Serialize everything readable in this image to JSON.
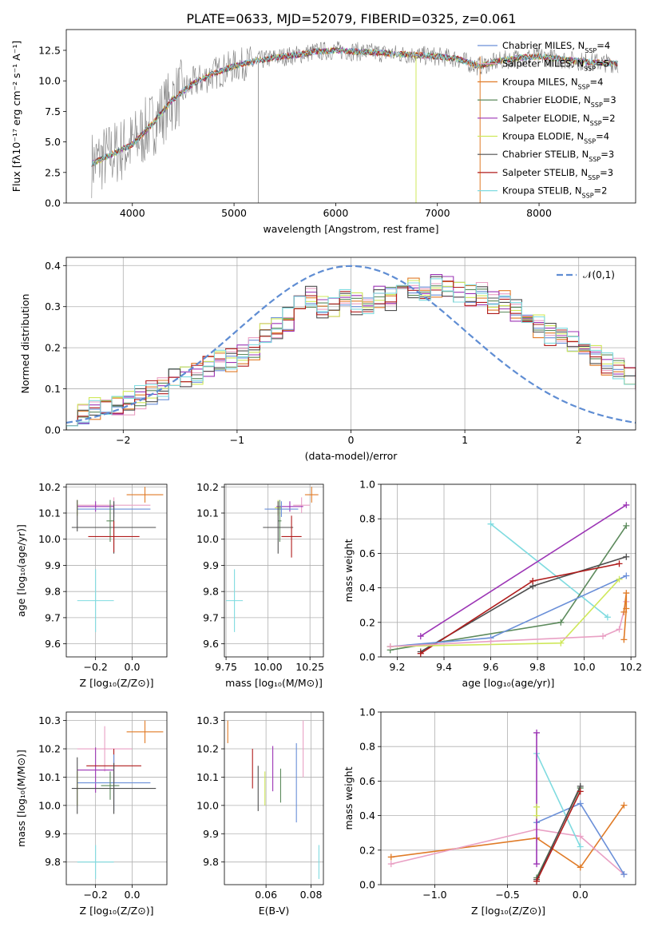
{
  "figure_title": "PLATE=0633, MJD=52079, FIBERID=0325, z=0.061",
  "colors": {
    "chabrier_miles": "#6a8fd8",
    "salpeter_miles": "#e9a0c4",
    "kroupa_miles": "#e07b27",
    "chabrier_elodie": "#5c8a5c",
    "salpeter_elodie": "#9c35b5",
    "kroupa_elodie": "#cfe85b",
    "chabrier_stelib": "#4f4f4f",
    "salpeter_stelib": "#b01c1c",
    "kroupa_stelib": "#7fdbe0",
    "data": "#808080",
    "normal": "#5f8dd3"
  },
  "chart_data": [
    {
      "id": "spectrum",
      "type": "line",
      "title": "PLATE=0633, MJD=52079, FIBERID=0325, z=0.061",
      "xlabel": "wavelength [Angstrom, rest frame]",
      "ylabel": "Flux [fλ10⁻¹⁷ erg cm⁻² s⁻¹ A⁻¹]",
      "xlim": [
        3350,
        8950
      ],
      "ylim": [
        0,
        14.2
      ],
      "xticks": [
        4000,
        5000,
        6000,
        7000,
        8000
      ],
      "xtick_labels": [
        "4000",
        "5000",
        "6000",
        "7000",
        "8000"
      ],
      "yticks": [
        0,
        2.5,
        5,
        7.5,
        10,
        12.5
      ],
      "ytick_labels": [
        "0.0",
        "2.5",
        "5.0",
        "7.5",
        "10.0",
        "12.5"
      ],
      "continuum": {
        "x": [
          3600,
          3800,
          4000,
          4200,
          4400,
          4600,
          4800,
          5000,
          5200,
          5400,
          5600,
          5800,
          6000,
          6200,
          6400,
          6600,
          6800,
          7000,
          7200,
          7400,
          7600,
          7800,
          8000,
          8200,
          8400,
          8600,
          8800
        ],
        "y": [
          3.2,
          4.0,
          4.8,
          6.5,
          8.5,
          9.8,
          10.6,
          11.2,
          11.6,
          11.9,
          12.1,
          12.4,
          12.5,
          12.4,
          12.3,
          12.2,
          12.1,
          12.0,
          11.8,
          11.2,
          11.6,
          11.9,
          12.0,
          11.8,
          11.6,
          11.5,
          11.4
        ]
      },
      "legend": [
        {
          "label": "Chabrier MILES, N",
          "sub": "SSP",
          "suffix": "=4",
          "color": "#6a8fd8"
        },
        {
          "label": "Salpeter MILES, N",
          "sub": "SSP",
          "suffix": "=5",
          "color": "#e9a0c4"
        },
        {
          "label": "Kroupa MILES, N",
          "sub": "SSP",
          "suffix": "=4",
          "color": "#e07b27"
        },
        {
          "label": "Chabrier ELODIE, N",
          "sub": "SSP",
          "suffix": "=3",
          "color": "#5c8a5c"
        },
        {
          "label": "Salpeter ELODIE, N",
          "sub": "SSP",
          "suffix": "=2",
          "color": "#9c35b5"
        },
        {
          "label": "Kroupa ELODIE, N",
          "sub": "SSP",
          "suffix": "=4",
          "color": "#cfe85b"
        },
        {
          "label": "Chabrier STELIB, N",
          "sub": "SSP",
          "suffix": "=3",
          "color": "#4f4f4f"
        },
        {
          "label": "Salpeter STELIB, N",
          "sub": "SSP",
          "suffix": "=3",
          "color": "#b01c1c"
        },
        {
          "label": "Kroupa STELIB, N",
          "sub": "SSP",
          "suffix": "=2",
          "color": "#7fdbe0"
        }
      ]
    },
    {
      "id": "residuals",
      "type": "step-histogram",
      "xlabel": "(data-model)/error",
      "ylabel": "Normed distribution",
      "xlim": [
        -2.5,
        2.5
      ],
      "ylim": [
        0,
        0.42
      ],
      "xticks": [
        -2,
        -1,
        0,
        1,
        2
      ],
      "xtick_labels": [
        "−2",
        "−1",
        "0",
        "1",
        "2"
      ],
      "yticks": [
        0,
        0.1,
        0.2,
        0.3,
        0.4
      ],
      "ytick_labels": [
        "0.0",
        "0.1",
        "0.2",
        "0.3",
        "0.4"
      ],
      "bin_width": 0.1,
      "bins_start": -2.5,
      "base_hist": [
        0.03,
        0.04,
        0.055,
        0.06,
        0.055,
        0.065,
        0.08,
        0.09,
        0.1,
        0.12,
        0.13,
        0.14,
        0.15,
        0.17,
        0.17,
        0.18,
        0.2,
        0.23,
        0.25,
        0.27,
        0.3,
        0.32,
        0.3,
        0.3,
        0.32,
        0.31,
        0.3,
        0.32,
        0.32,
        0.33,
        0.35,
        0.34,
        0.35,
        0.35,
        0.34,
        0.33,
        0.33,
        0.31,
        0.31,
        0.29,
        0.27,
        0.25,
        0.23,
        0.22,
        0.21,
        0.2,
        0.18,
        0.16,
        0.15,
        0.13,
        0.12,
        0.11,
        0.1,
        0.09,
        0.08,
        0.07,
        0.06,
        0.05,
        0.045,
        0.04,
        0.035,
        0.03,
        0.03,
        0.025,
        0.025
      ],
      "normal_label": "𝒩(0,1)"
    },
    {
      "id": "age-vs-Z",
      "type": "errorbar",
      "xlabel": "Z [log₁₀(Z/Z⊙)]",
      "ylabel": "age  [log₁₀(age/yr)]",
      "xlim": [
        -0.36,
        0.19
      ],
      "ylim": [
        9.55,
        10.21
      ],
      "xticks": [
        -0.2,
        0.0
      ],
      "xtick_labels": [
        "−0.2",
        "0.0"
      ],
      "yticks": [
        9.6,
        9.7,
        9.8,
        9.9,
        10.0,
        10.1,
        10.2
      ],
      "ytick_labels": [
        "9.6",
        "9.7",
        "9.8",
        "9.9",
        "10.0",
        "10.1",
        "10.2"
      ],
      "points": [
        {
          "color": "#e07b27",
          "x": 0.07,
          "y": 10.17,
          "xerr": 0.1,
          "yerr": 0.03
        },
        {
          "color": "#e9a0c4",
          "x": -0.1,
          "y": 10.13,
          "xerr": 0.2,
          "yerr": 0.03
        },
        {
          "color": "#9c35b5",
          "x": -0.2,
          "y": 10.125,
          "xerr": 0.1,
          "yerr": 0.02
        },
        {
          "color": "#cfe85b",
          "x": -0.3,
          "y": 10.12,
          "xerr": 0.0,
          "yerr": 0.03
        },
        {
          "color": "#6a8fd8",
          "x": -0.1,
          "y": 10.115,
          "xerr": 0.2,
          "yerr": 0.03
        },
        {
          "color": "#4f4f4f",
          "x": -0.3,
          "y": 10.09,
          "xerr": 0.0,
          "yerr": 0.06
        },
        {
          "color": "#5c8a5c",
          "x": -0.12,
          "y": 10.07,
          "xerr": 0.02,
          "yerr": 0.08
        },
        {
          "color": "#4f4f4f",
          "x": -0.1,
          "y": 10.045,
          "xerr": 0.23,
          "yerr": 0.1
        },
        {
          "color": "#b01c1c",
          "x": -0.1,
          "y": 10.01,
          "xerr": 0.14,
          "yerr": 0.06
        },
        {
          "color": "#7fdbe0",
          "x": -0.2,
          "y": 9.765,
          "xerr": 0.1,
          "yerr": 0.12
        }
      ]
    },
    {
      "id": "age-vs-mass",
      "type": "errorbar",
      "xlabel": "mass [log₁₀(M/M⊙)]",
      "ylabel": "",
      "xlim": [
        9.74,
        10.33
      ],
      "ylim": [
        9.55,
        10.21
      ],
      "xticks": [
        9.75,
        10.0,
        10.25
      ],
      "xtick_labels": [
        "9.75",
        "10.00",
        "10.25"
      ],
      "yticks": [
        9.6,
        9.7,
        9.8,
        9.9,
        10.0,
        10.1,
        10.2
      ],
      "ytick_labels": [
        "9.6",
        "9.7",
        "9.8",
        "9.9",
        "10.0",
        "10.1",
        "10.2"
      ],
      "points": [
        {
          "color": "#e07b27",
          "x": 10.26,
          "y": 10.17,
          "xerr": 0.04,
          "yerr": 0.03
        },
        {
          "color": "#e9a0c4",
          "x": 10.2,
          "y": 10.13,
          "xerr": 0.05,
          "yerr": 0.03
        },
        {
          "color": "#9c35b5",
          "x": 10.13,
          "y": 10.125,
          "xerr": 0.08,
          "yerr": 0.02
        },
        {
          "color": "#cfe85b",
          "x": 10.06,
          "y": 10.12,
          "xerr": 0.02,
          "yerr": 0.03
        },
        {
          "color": "#6a8fd8",
          "x": 10.08,
          "y": 10.115,
          "xerr": 0.1,
          "yerr": 0.03
        },
        {
          "color": "#5c8a5c",
          "x": 10.07,
          "y": 10.07,
          "xerr": 0.01,
          "yerr": 0.08
        },
        {
          "color": "#4f4f4f",
          "x": 10.06,
          "y": 10.045,
          "xerr": 0.09,
          "yerr": 0.1
        },
        {
          "color": "#b01c1c",
          "x": 10.14,
          "y": 10.01,
          "xerr": 0.06,
          "yerr": 0.08
        },
        {
          "color": "#7fdbe0",
          "x": 9.8,
          "y": 9.765,
          "xerr": 0.05,
          "yerr": 0.12
        }
      ]
    },
    {
      "id": "weight-vs-age",
      "type": "line",
      "xlabel": "age  [log₁₀(age/yr)]",
      "ylabel": "mass weight",
      "xlim": [
        9.13,
        10.22
      ],
      "ylim": [
        0,
        1
      ],
      "xticks": [
        9.2,
        9.4,
        9.6,
        9.8,
        10.0,
        10.2
      ],
      "xtick_labels": [
        "9.2",
        "9.4",
        "9.6",
        "9.8",
        "10.0",
        "10.2"
      ],
      "yticks": [
        0,
        0.2,
        0.4,
        0.6,
        0.8,
        1.0
      ],
      "ytick_labels": [
        "0.0",
        "0.2",
        "0.4",
        "0.6",
        "0.8",
        "1.0"
      ],
      "series": [
        {
          "color": "#7fdbe0",
          "x": [
            9.6,
            10.1
          ],
          "y": [
            0.77,
            0.23
          ]
        },
        {
          "color": "#9c35b5",
          "x": [
            9.3,
            10.18
          ],
          "y": [
            0.12,
            0.88
          ]
        },
        {
          "color": "#5c8a5c",
          "x": [
            9.17,
            9.9,
            10.18
          ],
          "y": [
            0.04,
            0.2,
            0.76
          ]
        },
        {
          "color": "#4f4f4f",
          "x": [
            9.3,
            9.78,
            10.18
          ],
          "y": [
            0.03,
            0.41,
            0.58
          ]
        },
        {
          "color": "#b01c1c",
          "x": [
            9.3,
            9.78,
            10.15
          ],
          "y": [
            0.02,
            0.44,
            0.54
          ]
        },
        {
          "color": "#6a8fd8",
          "x": [
            9.17,
            9.6,
            10.18
          ],
          "y": [
            0.06,
            0.11,
            0.47
          ]
        },
        {
          "color": "#cfe85b",
          "x": [
            9.17,
            9.9,
            10.15
          ],
          "y": [
            0.06,
            0.08,
            0.45
          ]
        },
        {
          "color": "#e9a0c4",
          "x": [
            9.17,
            9.6,
            10.08,
            10.15,
            10.18
          ],
          "y": [
            0.06,
            0.09,
            0.12,
            0.16,
            0.32
          ]
        },
        {
          "color": "#e07b27",
          "x": [
            10.17,
            10.18,
            10.18,
            10.17
          ],
          "y": [
            0.26,
            0.37,
            0.28,
            0.1
          ]
        }
      ]
    },
    {
      "id": "mass-vs-Z",
      "type": "errorbar",
      "xlabel": "Z [log₁₀(Z/Z⊙)]",
      "ylabel": "mass [log₁₀(M/M⊙)]",
      "xlim": [
        -0.36,
        0.19
      ],
      "ylim": [
        9.72,
        10.33
      ],
      "xticks": [
        -0.2,
        0.0
      ],
      "xtick_labels": [
        "−0.2",
        "0.0"
      ],
      "yticks": [
        9.8,
        9.9,
        10.0,
        10.1,
        10.2,
        10.3
      ],
      "ytick_labels": [
        "9.8",
        "9.9",
        "10.0",
        "10.1",
        "10.2",
        "10.3"
      ],
      "points": [
        {
          "color": "#e07b27",
          "x": 0.07,
          "y": 10.26,
          "xerr": 0.1,
          "yerr": 0.04
        },
        {
          "color": "#e9a0c4",
          "x": -0.15,
          "y": 10.2,
          "xerr": 0.15,
          "yerr": 0.08
        },
        {
          "color": "#9c35b5",
          "x": -0.2,
          "y": 10.125,
          "xerr": 0.1,
          "yerr": 0.08
        },
        {
          "color": "#b01c1c",
          "x": -0.1,
          "y": 10.14,
          "xerr": 0.15,
          "yerr": 0.06
        },
        {
          "color": "#6a8fd8",
          "x": -0.1,
          "y": 10.08,
          "xerr": 0.2,
          "yerr": 0.1
        },
        {
          "color": "#5c8a5c",
          "x": -0.12,
          "y": 10.07,
          "xerr": 0.05,
          "yerr": 0.05
        },
        {
          "color": "#cfe85b",
          "x": -0.3,
          "y": 10.06,
          "xerr": 0.0,
          "yerr": 0.06
        },
        {
          "color": "#4f4f4f",
          "x": -0.1,
          "y": 10.06,
          "xerr": 0.23,
          "yerr": 0.09
        },
        {
          "color": "#4f4f4f",
          "x": -0.3,
          "y": 10.07,
          "xerr": 0.0,
          "yerr": 0.1
        },
        {
          "color": "#7fdbe0",
          "x": -0.2,
          "y": 9.8,
          "xerr": 0.1,
          "yerr": 0.06
        }
      ]
    },
    {
      "id": "mass-vs-EBV",
      "type": "errorbar",
      "xlabel": "E(B-V)",
      "ylabel": "",
      "xlim": [
        0.0415,
        0.0855
      ],
      "ylim": [
        9.72,
        10.33
      ],
      "xticks": [
        0.06,
        0.08
      ],
      "xtick_labels": [
        "0.06",
        "0.08"
      ],
      "yticks": [
        9.8,
        9.9,
        10.0,
        10.1,
        10.2,
        10.3
      ],
      "ytick_labels": [
        "9.8",
        "9.9",
        "10.0",
        "10.1",
        "10.2",
        "10.3"
      ],
      "points": [
        {
          "color": "#e07b27",
          "x": 0.043,
          "y": 10.26,
          "xerr": 0,
          "yerr": 0.04
        },
        {
          "color": "#b01c1c",
          "x": 0.054,
          "y": 10.13,
          "xerr": 0,
          "yerr": 0.07
        },
        {
          "color": "#4f4f4f",
          "x": 0.0565,
          "y": 10.06,
          "xerr": 0,
          "yerr": 0.08
        },
        {
          "color": "#cfe85b",
          "x": 0.0595,
          "y": 10.06,
          "xerr": 0,
          "yerr": 0.06
        },
        {
          "color": "#9c35b5",
          "x": 0.063,
          "y": 10.13,
          "xerr": 0,
          "yerr": 0.08
        },
        {
          "color": "#5c8a5c",
          "x": 0.0665,
          "y": 10.07,
          "xerr": 0,
          "yerr": 0.06
        },
        {
          "color": "#6a8fd8",
          "x": 0.0735,
          "y": 10.08,
          "xerr": 0,
          "yerr": 0.14
        },
        {
          "color": "#e9a0c4",
          "x": 0.0765,
          "y": 10.2,
          "xerr": 0,
          "yerr": 0.1
        },
        {
          "color": "#7fdbe0",
          "x": 0.0835,
          "y": 9.8,
          "xerr": 0,
          "yerr": 0.06
        }
      ]
    },
    {
      "id": "weight-vs-Z",
      "type": "line",
      "xlabel": "Z [log₁₀(Z/Z⊙)]",
      "ylabel": "mass weight",
      "xlim": [
        -1.37,
        0.38
      ],
      "ylim": [
        0,
        1
      ],
      "xticks": [
        -1.0,
        -0.5,
        0.0
      ],
      "xtick_labels": [
        "−1.0",
        "−0.5",
        "0.0"
      ],
      "yticks": [
        0,
        0.2,
        0.4,
        0.6,
        0.8,
        1.0
      ],
      "ytick_labels": [
        "0.0",
        "0.2",
        "0.4",
        "0.6",
        "0.8",
        "1.0"
      ],
      "series": [
        {
          "color": "#e07b27",
          "x": [
            -1.3,
            -0.3,
            0.0,
            0.3
          ],
          "y": [
            0.16,
            0.27,
            0.1,
            0.46
          ]
        },
        {
          "color": "#e9a0c4",
          "x": [
            -1.3,
            -0.3,
            0.0,
            0.3
          ],
          "y": [
            0.12,
            0.32,
            0.28,
            0.06
          ]
        },
        {
          "color": "#6a8fd8",
          "x": [
            -0.3,
            0.0,
            0.3
          ],
          "y": [
            0.36,
            0.47,
            0.06
          ]
        },
        {
          "color": "#7fdbe0",
          "x": [
            -0.3,
            0.0
          ],
          "y": [
            0.76,
            0.22
          ]
        },
        {
          "color": "#9c35b5",
          "x": [
            -0.3,
            -0.3
          ],
          "y": [
            0.12,
            0.88
          ]
        },
        {
          "color": "#5c8a5c",
          "x": [
            -0.3,
            0.0
          ],
          "y": [
            0.04,
            0.56
          ]
        },
        {
          "color": "#4f4f4f",
          "x": [
            -0.3,
            0.0
          ],
          "y": [
            0.03,
            0.57
          ]
        },
        {
          "color": "#b01c1c",
          "x": [
            -0.3,
            0.0
          ],
          "y": [
            0.02,
            0.54
          ]
        },
        {
          "color": "#cfe85b",
          "x": [
            -0.3,
            -0.3
          ],
          "y": [
            0.4,
            0.45
          ]
        }
      ]
    }
  ]
}
